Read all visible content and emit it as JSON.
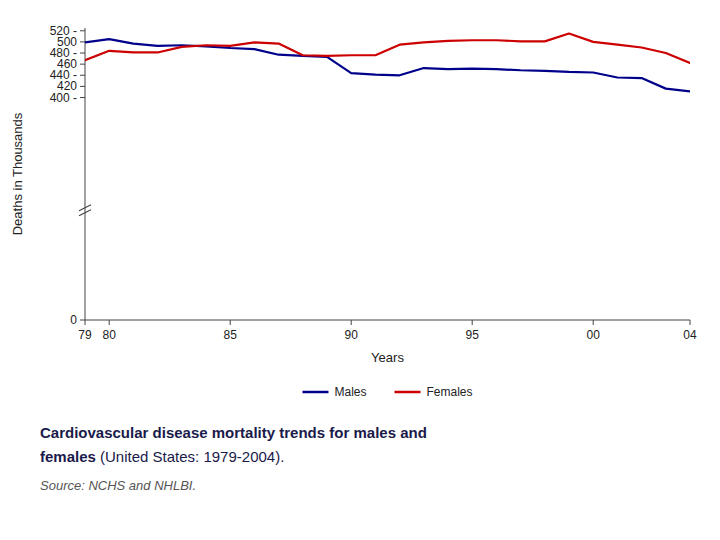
{
  "chart_data": {
    "type": "line",
    "x": [
      79,
      80,
      81,
      82,
      83,
      84,
      85,
      86,
      87,
      88,
      89,
      90,
      91,
      92,
      93,
      94,
      95,
      96,
      97,
      98,
      99,
      100,
      101,
      102,
      103,
      104
    ],
    "series": [
      {
        "name": "Males",
        "color": "#00008B",
        "values": [
          499,
          505,
          497,
          493,
          494,
          492,
          489,
          487,
          477,
          475,
          473,
          444,
          441,
          440,
          453,
          451,
          452,
          451,
          449,
          448,
          446,
          445,
          436,
          435,
          416,
          411
        ]
      },
      {
        "name": "Females",
        "color": "#CC0000",
        "values": [
          467,
          484,
          481,
          481,
          491,
          494,
          493,
          499,
          497,
          476,
          475,
          476,
          476,
          495,
          499,
          502,
          503,
          503,
          501,
          501,
          515,
          500,
          495,
          490,
          480,
          462
        ]
      }
    ],
    "x_label": "Years",
    "y_label": "Deaths in Thousands",
    "xlim": [
      79,
      104
    ],
    "ylim": [
      0,
      525
    ],
    "xticks": [
      79,
      80,
      85,
      90,
      95,
      {
        "value": 100,
        "label": "00"
      },
      {
        "value": 104,
        "label": "04"
      }
    ],
    "yticks": [
      0,
      {
        "value": 400,
        "label": "400 -"
      },
      420,
      {
        "value": 440,
        "label": "440 -"
      },
      460,
      {
        "value": 480,
        "label": "480 -"
      },
      500,
      {
        "value": 520,
        "label": "520 -"
      }
    ],
    "grid": false,
    "legend": "bottom",
    "annotations": [
      "Cardiovascular disease mortality trends for males and",
      "females",
      " (United States: 1979-2004).",
      "Source: NCHS and NHLBI."
    ]
  }
}
